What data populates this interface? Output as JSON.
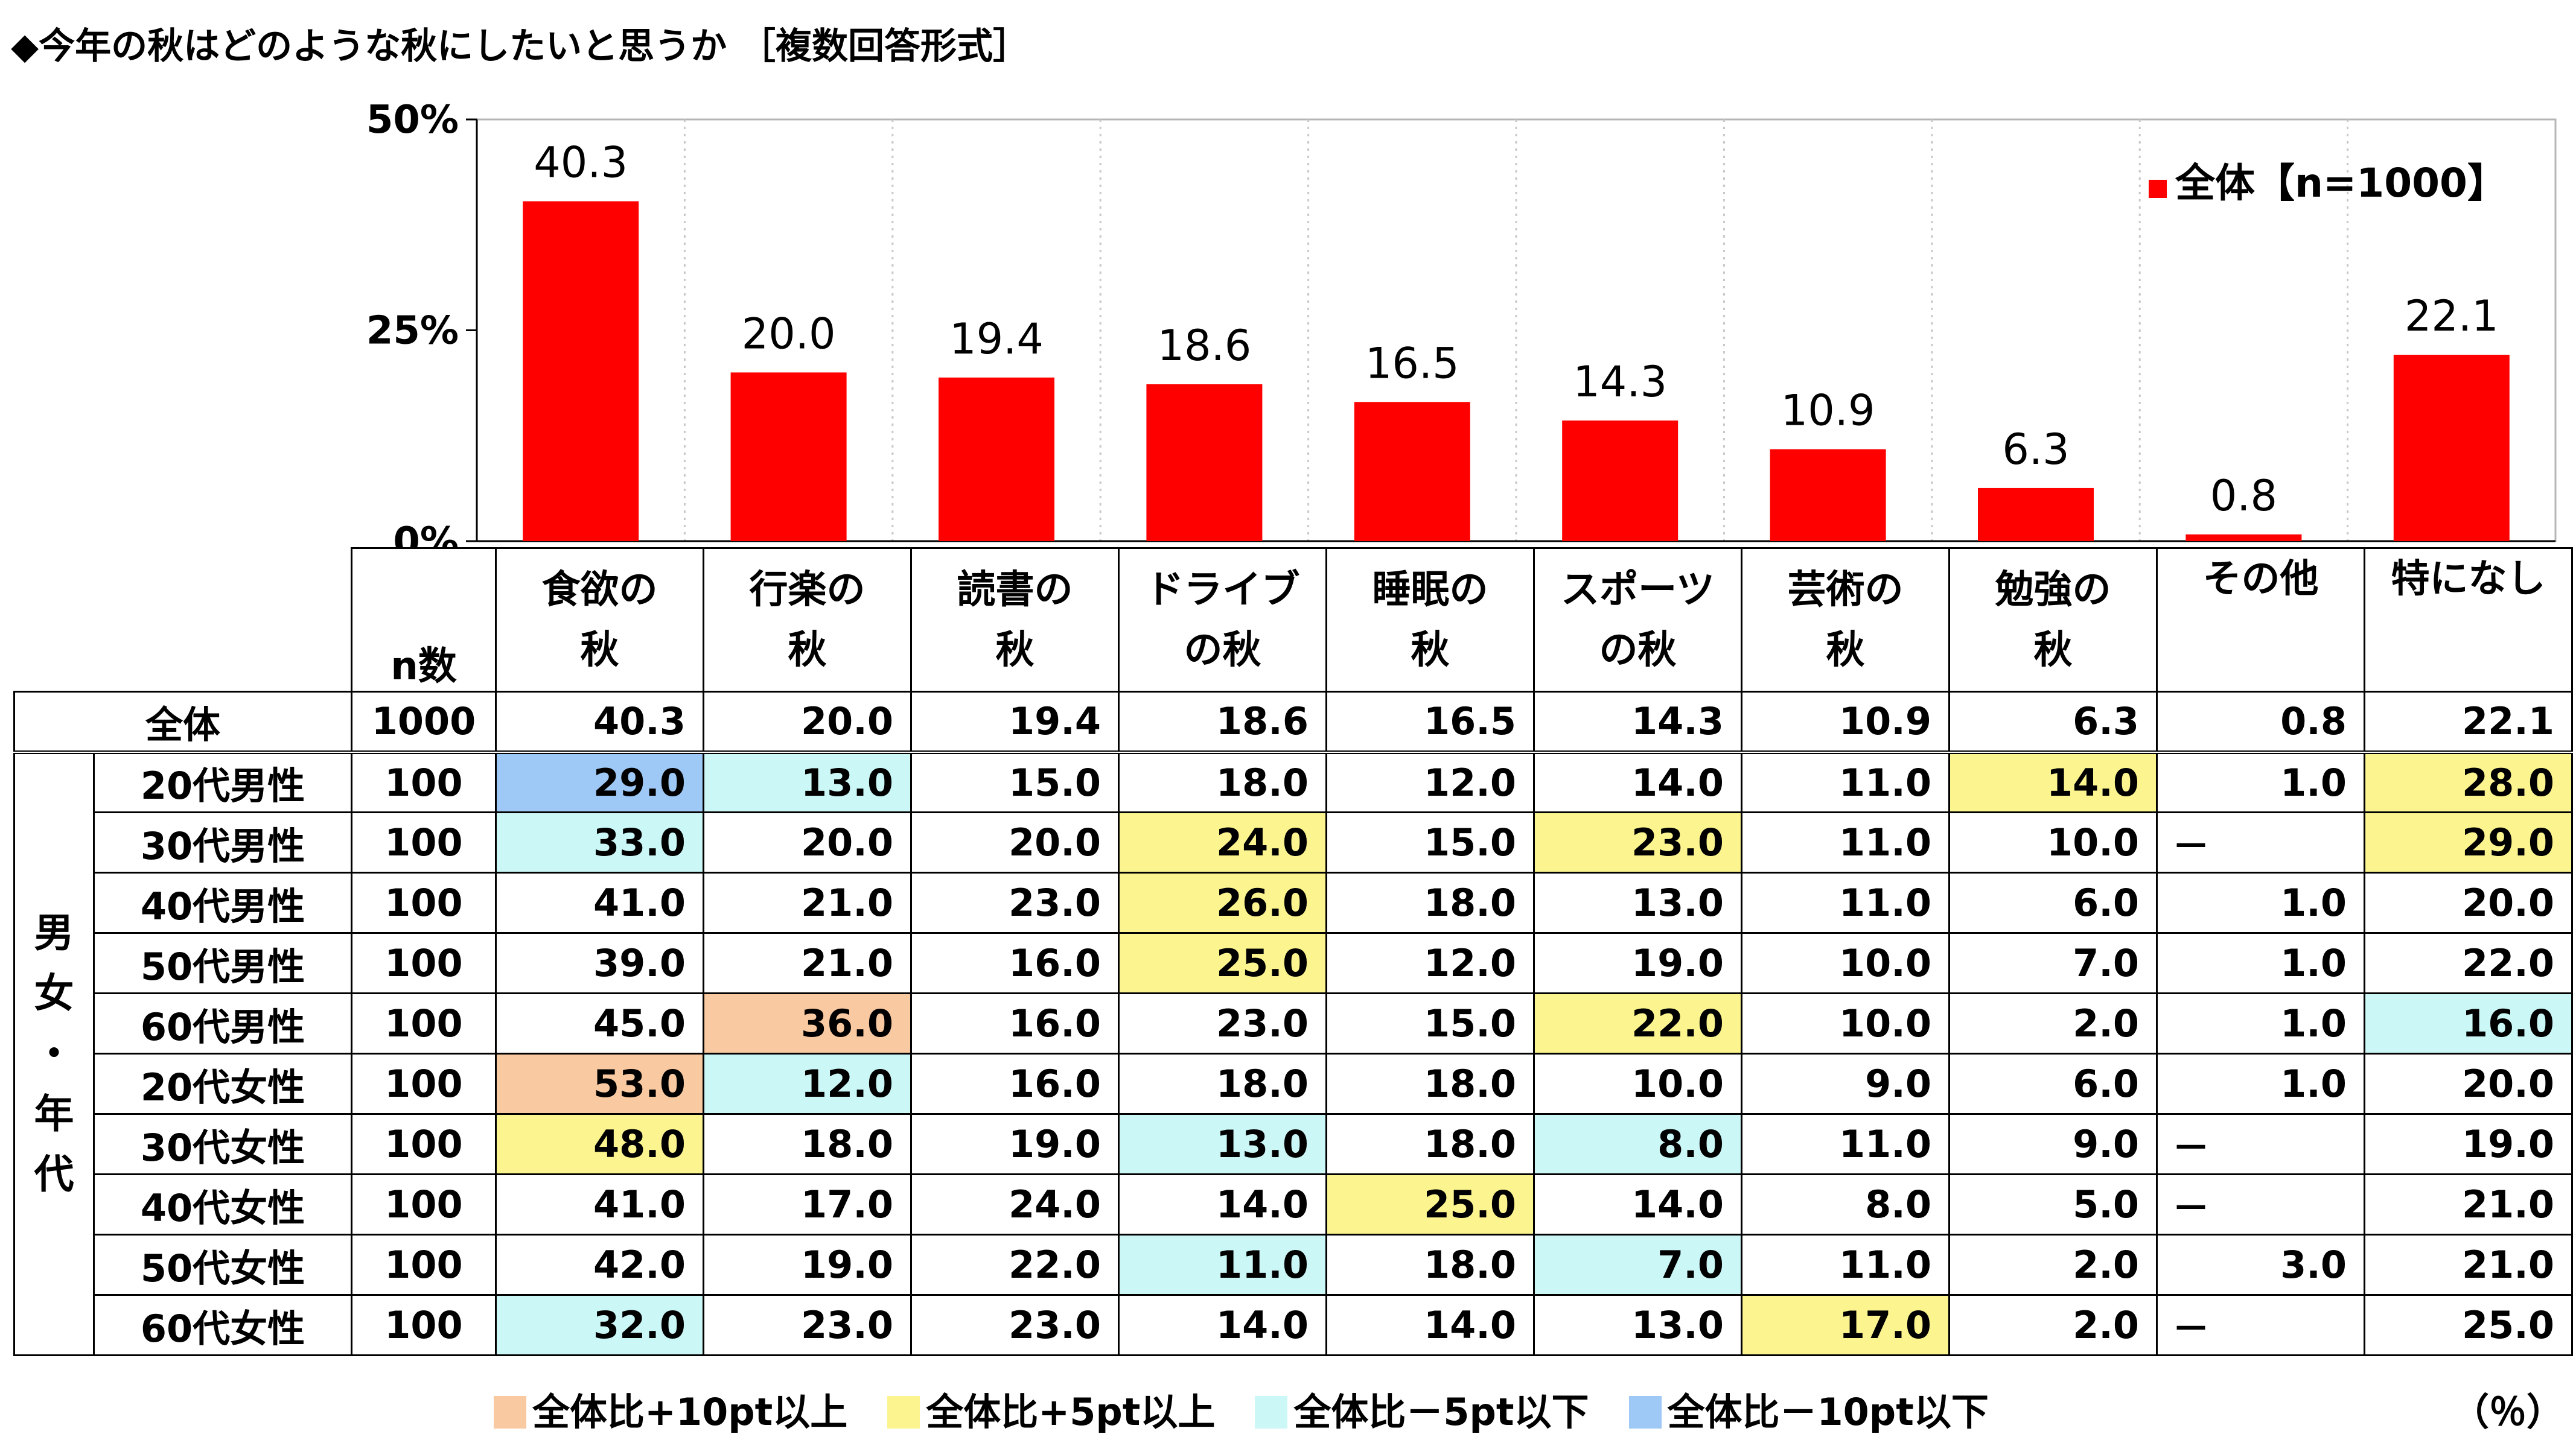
{
  "title": "◆今年の秋はどのような秋にしたいと思うか ［複数回答形式］",
  "chart_data": {
    "type": "bar",
    "categories": [
      "食欲の秋",
      "行楽の秋",
      "読書の秋",
      "ドライブの秋",
      "睡眠の秋",
      "スポーツの秋",
      "芸術の秋",
      "勉強の秋",
      "その他",
      "特になし"
    ],
    "series": [
      {
        "name": "全体【n=1000】",
        "values": [
          40.3,
          20.0,
          19.4,
          18.6,
          16.5,
          14.3,
          10.9,
          6.3,
          0.8,
          22.1
        ]
      }
    ],
    "data_labels": [
      "40.3",
      "20.0",
      "19.4",
      "18.6",
      "16.5",
      "14.3",
      "10.9",
      "6.3",
      "0.8",
      "22.1"
    ],
    "yticks": [
      "0%",
      "25%",
      "50%"
    ],
    "ylim": [
      0,
      50
    ],
    "bar_color": "#ff0000",
    "legend_position": "top-right",
    "grid": "vertical dotted"
  },
  "table": {
    "n_header": "n数",
    "col_headers": [
      [
        "食欲の",
        "秋"
      ],
      [
        "行楽の",
        "秋"
      ],
      [
        "読書の",
        "秋"
      ],
      [
        "ドライブ",
        "の秋"
      ],
      [
        "睡眠の",
        "秋"
      ],
      [
        "スポーツ",
        "の秋"
      ],
      [
        "芸術の",
        "秋"
      ],
      [
        "勉強の",
        "秋"
      ],
      [
        "その他",
        ""
      ],
      [
        "特になし",
        ""
      ]
    ],
    "total_row": {
      "label": "全体",
      "n": "1000",
      "cells": [
        {
          "v": "40.3"
        },
        {
          "v": "20.0"
        },
        {
          "v": "19.4"
        },
        {
          "v": "18.6"
        },
        {
          "v": "16.5"
        },
        {
          "v": "14.3"
        },
        {
          "v": "10.9"
        },
        {
          "v": "6.3"
        },
        {
          "v": "0.8"
        },
        {
          "v": "22.1"
        }
      ]
    },
    "group_label": "男女・年代",
    "rows": [
      {
        "label": "20代男性",
        "n": "100",
        "cells": [
          {
            "v": "29.0",
            "hl": "blue"
          },
          {
            "v": "13.0",
            "hl": "cyan"
          },
          {
            "v": "15.0"
          },
          {
            "v": "18.0"
          },
          {
            "v": "12.0"
          },
          {
            "v": "14.0"
          },
          {
            "v": "11.0"
          },
          {
            "v": "14.0",
            "hl": "yellow"
          },
          {
            "v": "1.0"
          },
          {
            "v": "28.0",
            "hl": "yellow"
          }
        ]
      },
      {
        "label": "30代男性",
        "n": "100",
        "cells": [
          {
            "v": "33.0",
            "hl": "cyan"
          },
          {
            "v": "20.0"
          },
          {
            "v": "20.0"
          },
          {
            "v": "24.0",
            "hl": "yellow"
          },
          {
            "v": "15.0"
          },
          {
            "v": "23.0",
            "hl": "yellow"
          },
          {
            "v": "11.0"
          },
          {
            "v": "10.0"
          },
          {
            "v": "－",
            "dash": true
          },
          {
            "v": "29.0",
            "hl": "yellow"
          }
        ]
      },
      {
        "label": "40代男性",
        "n": "100",
        "cells": [
          {
            "v": "41.0"
          },
          {
            "v": "21.0"
          },
          {
            "v": "23.0"
          },
          {
            "v": "26.0",
            "hl": "yellow"
          },
          {
            "v": "18.0"
          },
          {
            "v": "13.0"
          },
          {
            "v": "11.0"
          },
          {
            "v": "6.0"
          },
          {
            "v": "1.0"
          },
          {
            "v": "20.0"
          }
        ]
      },
      {
        "label": "50代男性",
        "n": "100",
        "cells": [
          {
            "v": "39.0"
          },
          {
            "v": "21.0"
          },
          {
            "v": "16.0"
          },
          {
            "v": "25.0",
            "hl": "yellow"
          },
          {
            "v": "12.0"
          },
          {
            "v": "19.0"
          },
          {
            "v": "10.0"
          },
          {
            "v": "7.0"
          },
          {
            "v": "1.0"
          },
          {
            "v": "22.0"
          }
        ]
      },
      {
        "label": "60代男性",
        "n": "100",
        "cells": [
          {
            "v": "45.0"
          },
          {
            "v": "36.0",
            "hl": "orange"
          },
          {
            "v": "16.0"
          },
          {
            "v": "23.0"
          },
          {
            "v": "15.0"
          },
          {
            "v": "22.0",
            "hl": "yellow"
          },
          {
            "v": "10.0"
          },
          {
            "v": "2.0"
          },
          {
            "v": "1.0"
          },
          {
            "v": "16.0",
            "hl": "cyan"
          }
        ]
      },
      {
        "label": "20代女性",
        "n": "100",
        "cells": [
          {
            "v": "53.0",
            "hl": "orange"
          },
          {
            "v": "12.0",
            "hl": "cyan"
          },
          {
            "v": "16.0"
          },
          {
            "v": "18.0"
          },
          {
            "v": "18.0"
          },
          {
            "v": "10.0"
          },
          {
            "v": "9.0"
          },
          {
            "v": "6.0"
          },
          {
            "v": "1.0"
          },
          {
            "v": "20.0"
          }
        ]
      },
      {
        "label": "30代女性",
        "n": "100",
        "cells": [
          {
            "v": "48.0",
            "hl": "yellow"
          },
          {
            "v": "18.0"
          },
          {
            "v": "19.0"
          },
          {
            "v": "13.0",
            "hl": "cyan"
          },
          {
            "v": "18.0"
          },
          {
            "v": "8.0",
            "hl": "cyan"
          },
          {
            "v": "11.0"
          },
          {
            "v": "9.0"
          },
          {
            "v": "－",
            "dash": true
          },
          {
            "v": "19.0"
          }
        ]
      },
      {
        "label": "40代女性",
        "n": "100",
        "cells": [
          {
            "v": "41.0"
          },
          {
            "v": "17.0"
          },
          {
            "v": "24.0"
          },
          {
            "v": "14.0"
          },
          {
            "v": "25.0",
            "hl": "yellow"
          },
          {
            "v": "14.0"
          },
          {
            "v": "8.0"
          },
          {
            "v": "5.0"
          },
          {
            "v": "－",
            "dash": true
          },
          {
            "v": "21.0"
          }
        ]
      },
      {
        "label": "50代女性",
        "n": "100",
        "cells": [
          {
            "v": "42.0"
          },
          {
            "v": "19.0"
          },
          {
            "v": "22.0"
          },
          {
            "v": "11.0",
            "hl": "cyan"
          },
          {
            "v": "18.0"
          },
          {
            "v": "7.0",
            "hl": "cyan"
          },
          {
            "v": "11.0"
          },
          {
            "v": "2.0"
          },
          {
            "v": "3.0"
          },
          {
            "v": "21.0"
          }
        ]
      },
      {
        "label": "60代女性",
        "n": "100",
        "cells": [
          {
            "v": "32.0",
            "hl": "cyan"
          },
          {
            "v": "23.0"
          },
          {
            "v": "23.0"
          },
          {
            "v": "14.0"
          },
          {
            "v": "14.0"
          },
          {
            "v": "13.0"
          },
          {
            "v": "17.0",
            "hl": "yellow"
          },
          {
            "v": "2.0"
          },
          {
            "v": "－",
            "dash": true
          },
          {
            "v": "25.0"
          }
        ]
      }
    ]
  },
  "legend": [
    {
      "label": "全体比+10pt以上",
      "color": "#f9c9a1"
    },
    {
      "label": "全体比+5pt以上",
      "color": "#fbf48f"
    },
    {
      "label": "全体比－5pt以下",
      "color": "#cbf7f7"
    },
    {
      "label": "全体比－10pt以下",
      "color": "#9ec8f5"
    }
  ],
  "unit_note": "（％）"
}
